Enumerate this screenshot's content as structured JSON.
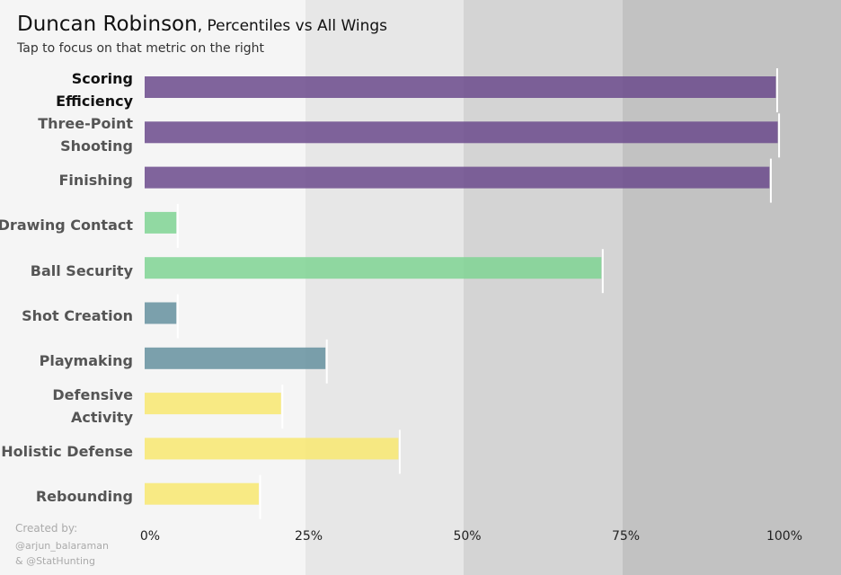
{
  "header": {
    "player": "Duncan Robinson",
    "rest": ", Percentiles vs All Wings",
    "subtitle": "Tap to focus on that metric on the right"
  },
  "credits": {
    "line1": "Created by:",
    "line2": "@arjun_balaraman",
    "line3": "& @StatHunting"
  },
  "bands": [
    {
      "from": 25,
      "to": 50,
      "color": "#e7e7e7"
    },
    {
      "from": 50,
      "to": 75,
      "color": "#d4d4d4"
    },
    {
      "from": 75,
      "to": 100,
      "color": "#c2c2c2"
    }
  ],
  "chart_data": {
    "type": "bar",
    "orientation": "horizontal",
    "title": "Duncan Robinson, Percentiles vs All Wings",
    "xlim": [
      0,
      100
    ],
    "x_ticks": [
      "0%",
      "25%",
      "50%",
      "75%",
      "100%"
    ],
    "categories": [
      {
        "label_lines": [
          "Scoring",
          "Efficiency"
        ],
        "value": 99.5,
        "color": "#6b4a8c",
        "active": true
      },
      {
        "label_lines": [
          "Three-Point",
          "Shooting"
        ],
        "value": 99.8,
        "color": "#6b4a8c",
        "active": false
      },
      {
        "label_lines": [
          "Finishing"
        ],
        "value": 98.5,
        "color": "#6b4a8c",
        "active": false
      },
      {
        "label_lines": [
          "Drawing Contact"
        ],
        "value": 5,
        "color": "#7fd393",
        "active": false
      },
      {
        "label_lines": [
          "Ball Security"
        ],
        "value": 72,
        "color": "#7fd393",
        "active": false
      },
      {
        "label_lines": [
          "Shot Creation"
        ],
        "value": 5,
        "color": "#65909f",
        "active": false
      },
      {
        "label_lines": [
          "Playmaking"
        ],
        "value": 28.5,
        "color": "#65909f",
        "active": false
      },
      {
        "label_lines": [
          "Defensive",
          "Activity"
        ],
        "value": 21.5,
        "color": "#f8e770",
        "active": false
      },
      {
        "label_lines": [
          "Holistic Defense"
        ],
        "value": 40,
        "color": "#f8e770",
        "active": false
      },
      {
        "label_lines": [
          "Rebounding"
        ],
        "value": 18,
        "color": "#f8e770",
        "active": false
      }
    ]
  }
}
